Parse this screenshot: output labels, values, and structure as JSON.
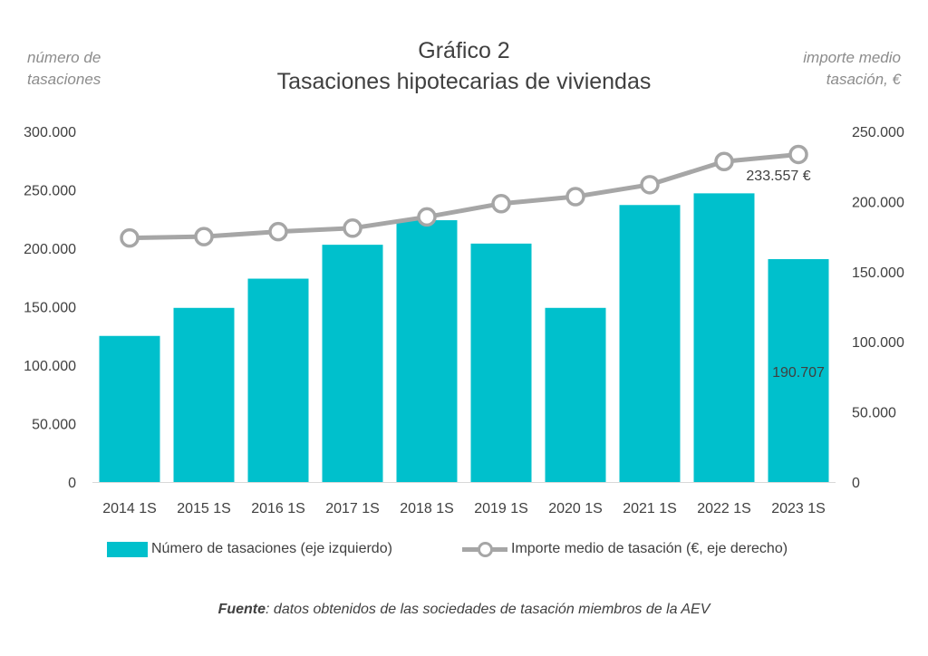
{
  "header": {
    "title_line1": "Gráfico 2",
    "title_line2": "Tasaciones hipotecarias de viviendas",
    "left_axis_note_line1": "número de",
    "left_axis_note_line2": "tasaciones",
    "right_axis_note_line1": "importe  medio",
    "right_axis_note_line2": "tasación, €"
  },
  "legend": {
    "bars_label": "Número de tasaciones (eje izquierdo)",
    "line_label": "Importe medio de tasación (€, eje derecho)"
  },
  "source": {
    "prefix": "Fuente",
    "text": ": datos obtenidos de las sociedades de tasación miembros de la AEV"
  },
  "colors": {
    "bars": "#00c0cc",
    "line": "#a6a6a6",
    "text": "#404040"
  },
  "chart_data": {
    "type": "bar",
    "title": "Gráfico 2 Tasaciones hipotecarias de viviendas",
    "categories": [
      "2014 1S",
      "2015 1S",
      "2016 1S",
      "2017 1S",
      "2018 1S",
      "2019 1S",
      "2020 1S",
      "2021 1S",
      "2022 1S",
      "2023 1S"
    ],
    "series": [
      {
        "name": "Número de tasaciones (eje izquierdo)",
        "kind": "bar",
        "axis": "left",
        "values": [
          125000,
          149000,
          174000,
          203000,
          224000,
          204000,
          149000,
          237000,
          247000,
          190707
        ]
      },
      {
        "name": "Importe medio de tasación (€, eje derecho)",
        "kind": "line",
        "axis": "right",
        "values": [
          174000,
          175000,
          178500,
          181000,
          189000,
          198500,
          203500,
          212000,
          228500,
          233557
        ]
      }
    ],
    "left_axis": {
      "min": 0,
      "max": 300000,
      "ticks": [
        "0",
        "50.000",
        "100.000",
        "150.000",
        "200.000",
        "250.000",
        "300.000"
      ]
    },
    "right_axis": {
      "min": 0,
      "max": 250000,
      "ticks": [
        "0",
        "50.000",
        "100.000",
        "150.000",
        "200.000",
        "250.000"
      ]
    },
    "data_labels": {
      "bar_last": "190.707",
      "line_last": "233.557 €"
    },
    "grid": false,
    "legend_position": "bottom"
  }
}
